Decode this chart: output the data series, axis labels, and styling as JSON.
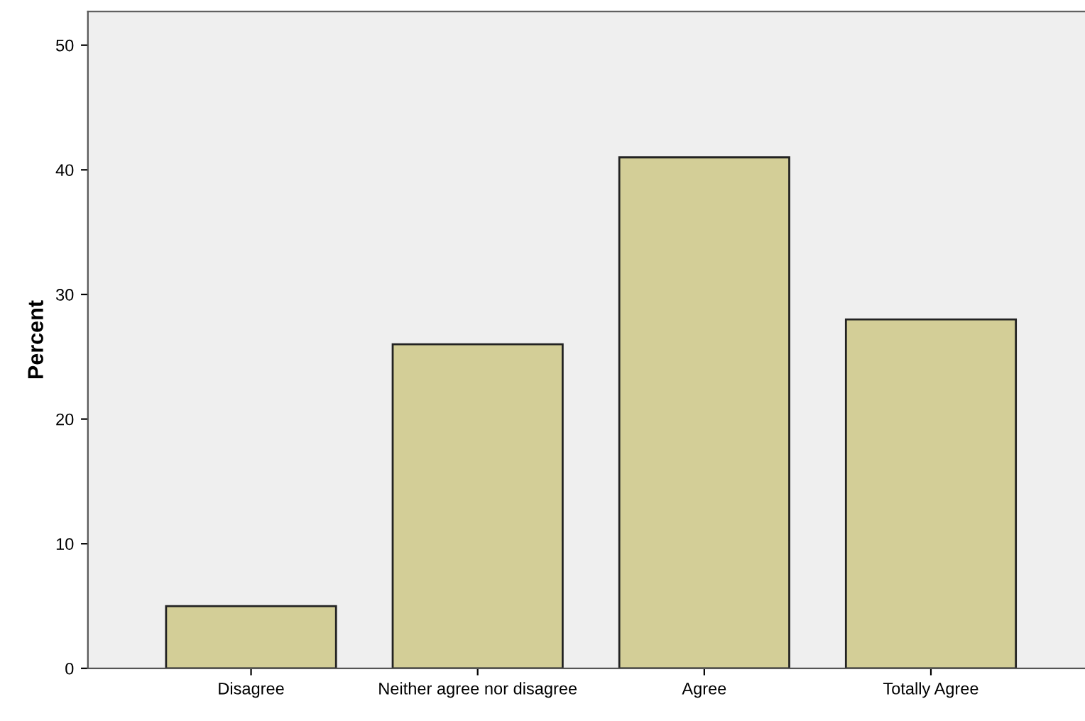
{
  "chart_data": {
    "type": "bar",
    "ylabel": "Percent",
    "categories": [
      "Disagree",
      "Neither agree nor disagree",
      "Agree",
      "Totally Agree"
    ],
    "values": [
      5,
      26,
      41,
      28
    ],
    "color": "#d3ce97",
    "ylim": [
      0,
      52.7
    ],
    "yticks": [
      0,
      10,
      20,
      30,
      40,
      50
    ],
    "grid": false,
    "legend": false
  }
}
